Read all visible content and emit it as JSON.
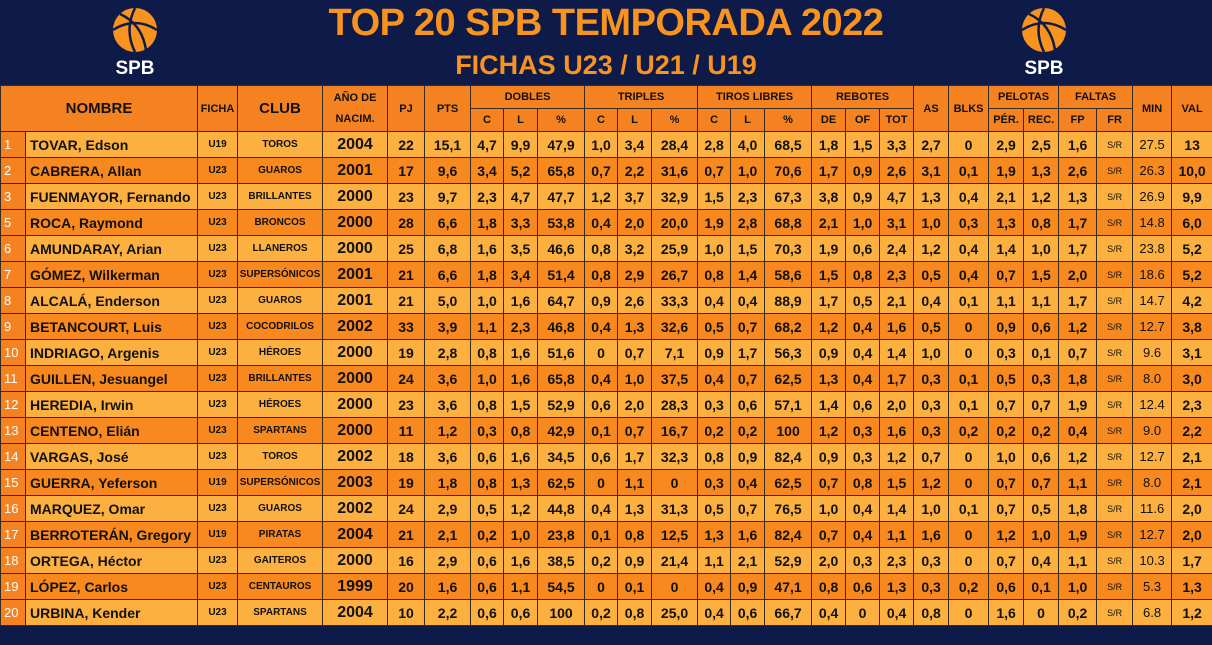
{
  "header": {
    "title": "TOP 20 SPB TEMPORADA 2022",
    "subtitle": "FICHAS U23 / U21 / U19",
    "logo_text": "SPB"
  },
  "table": {
    "groups": [
      {
        "label": "NOMBRE"
      },
      {
        "label": "FICHA"
      },
      {
        "label": "CLUB"
      },
      {
        "label": "AÑO DE NACIM."
      },
      {
        "label": "PJ"
      },
      {
        "label": "PTS"
      },
      {
        "label": "DOBLES",
        "sub": [
          "C",
          "L",
          "%"
        ]
      },
      {
        "label": "TRIPLES",
        "sub": [
          "C",
          "L",
          "%"
        ]
      },
      {
        "label": "TIROS LIBRES",
        "sub": [
          "C",
          "L",
          "%"
        ]
      },
      {
        "label": "REBOTES",
        "sub": [
          "DE",
          "OF",
          "TOT"
        ]
      },
      {
        "label": "AS"
      },
      {
        "label": "BLKS"
      },
      {
        "label": "PELOTAS",
        "sub": [
          "PÉR.",
          "REC."
        ]
      },
      {
        "label": "FALTAS",
        "sub": [
          "FP",
          "FR"
        ]
      },
      {
        "label": "MIN"
      },
      {
        "label": "VAL"
      }
    ],
    "rows": [
      [
        "1",
        "TOVAR, Edson",
        "U19",
        "TOROS",
        "2004",
        "22",
        "15,1",
        "4,7",
        "9,9",
        "47,9",
        "1,0",
        "3,4",
        "28,4",
        "2,8",
        "4,0",
        "68,5",
        "1,8",
        "1,5",
        "3,3",
        "2,7",
        "0",
        "2,9",
        "2,5",
        "1,6",
        "S/R",
        "27.5",
        "13"
      ],
      [
        "2",
        "CABRERA, Allan",
        "U23",
        "GUAROS",
        "2001",
        "17",
        "9,6",
        "3,4",
        "5,2",
        "65,8",
        "0,7",
        "2,2",
        "31,6",
        "0,7",
        "1,0",
        "70,6",
        "1,7",
        "0,9",
        "2,6",
        "3,1",
        "0,1",
        "1,9",
        "1,3",
        "2,6",
        "S/R",
        "26.3",
        "10,0"
      ],
      [
        "3",
        "FUENMAYOR, Fernando",
        "U23",
        "BRILLANTES",
        "2000",
        "23",
        "9,7",
        "2,3",
        "4,7",
        "47,7",
        "1,2",
        "3,7",
        "32,9",
        "1,5",
        "2,3",
        "67,3",
        "3,8",
        "0,9",
        "4,7",
        "1,3",
        "0,4",
        "2,1",
        "1,2",
        "1,3",
        "S/R",
        "26.9",
        "9,9"
      ],
      [
        "5",
        "ROCA, Raymond",
        "U23",
        "BRONCOS",
        "2000",
        "28",
        "6,6",
        "1,8",
        "3,3",
        "53,8",
        "0,4",
        "2,0",
        "20,0",
        "1,9",
        "2,8",
        "68,8",
        "2,1",
        "1,0",
        "3,1",
        "1,0",
        "0,3",
        "1,3",
        "0,8",
        "1,7",
        "S/R",
        "14.8",
        "6,0"
      ],
      [
        "6",
        "AMUNDARAY, Arian",
        "U23",
        "LLANEROS",
        "2000",
        "25",
        "6,8",
        "1,6",
        "3,5",
        "46,6",
        "0,8",
        "3,2",
        "25,9",
        "1,0",
        "1,5",
        "70,3",
        "1,9",
        "0,6",
        "2,4",
        "1,2",
        "0,4",
        "1,4",
        "1,0",
        "1,7",
        "S/R",
        "23.8",
        "5,2"
      ],
      [
        "7",
        "GÓMEZ, Wilkerman",
        "U23",
        "SUPERSÓNICOS",
        "2001",
        "21",
        "6,6",
        "1,8",
        "3,4",
        "51,4",
        "0,8",
        "2,9",
        "26,7",
        "0,8",
        "1,4",
        "58,6",
        "1,5",
        "0,8",
        "2,3",
        "0,5",
        "0,4",
        "0,7",
        "1,5",
        "2,0",
        "S/R",
        "18.6",
        "5,2"
      ],
      [
        "8",
        "ALCALÁ, Enderson",
        "U23",
        "GUAROS",
        "2001",
        "21",
        "5,0",
        "1,0",
        "1,6",
        "64,7",
        "0,9",
        "2,6",
        "33,3",
        "0,4",
        "0,4",
        "88,9",
        "1,7",
        "0,5",
        "2,1",
        "0,4",
        "0,1",
        "1,1",
        "1,1",
        "1,7",
        "S/R",
        "14.7",
        "4,2"
      ],
      [
        "9",
        "BETANCOURT, Luis",
        "U23",
        "COCODRILOS",
        "2002",
        "33",
        "3,9",
        "1,1",
        "2,3",
        "46,8",
        "0,4",
        "1,3",
        "32,6",
        "0,5",
        "0,7",
        "68,2",
        "1,2",
        "0,4",
        "1,6",
        "0,5",
        "0",
        "0,9",
        "0,6",
        "1,2",
        "S/R",
        "12.7",
        "3,8"
      ],
      [
        "10",
        "INDRIAGO, Argenis",
        "U23",
        "HÉROES",
        "2000",
        "19",
        "2,8",
        "0,8",
        "1,6",
        "51,6",
        "0",
        "0,7",
        "7,1",
        "0,9",
        "1,7",
        "56,3",
        "0,9",
        "0,4",
        "1,4",
        "1,0",
        "0",
        "0,3",
        "0,1",
        "0,7",
        "S/R",
        "9.6",
        "3,1"
      ],
      [
        "11",
        "GUILLEN, Jesuangel",
        "U23",
        "BRILLANTES",
        "2000",
        "24",
        "3,6",
        "1,0",
        "1,6",
        "65,8",
        "0,4",
        "1,0",
        "37,5",
        "0,4",
        "0,7",
        "62,5",
        "1,3",
        "0,4",
        "1,7",
        "0,3",
        "0,1",
        "0,5",
        "0,3",
        "1,8",
        "S/R",
        "8.0",
        "3,0"
      ],
      [
        "12",
        "HEREDIA, Irwin",
        "U23",
        "HÉROES",
        "2000",
        "23",
        "3,6",
        "0,8",
        "1,5",
        "52,9",
        "0,6",
        "2,0",
        "28,3",
        "0,3",
        "0,6",
        "57,1",
        "1,4",
        "0,6",
        "2,0",
        "0,3",
        "0,1",
        "0,7",
        "0,7",
        "1,9",
        "S/R",
        "12.4",
        "2,3"
      ],
      [
        "13",
        "CENTENO, Elián",
        "U23",
        "SPARTANS",
        "2000",
        "11",
        "1,2",
        "0,3",
        "0,8",
        "42,9",
        "0,1",
        "0,7",
        "16,7",
        "0,2",
        "0,2",
        "100",
        "1,2",
        "0,3",
        "1,6",
        "0,3",
        "0,2",
        "0,2",
        "0,2",
        "0,4",
        "S/R",
        "9.0",
        "2,2"
      ],
      [
        "14",
        "VARGAS, José",
        "U23",
        "TOROS",
        "2002",
        "18",
        "3,6",
        "0,6",
        "1,6",
        "34,5",
        "0,6",
        "1,7",
        "32,3",
        "0,8",
        "0,9",
        "82,4",
        "0,9",
        "0,3",
        "1,2",
        "0,7",
        "0",
        "1,0",
        "0,6",
        "1,2",
        "S/R",
        "12.7",
        "2,1"
      ],
      [
        "15",
        "GUERRA, Yeferson",
        "U19",
        "SUPERSÓNICOS",
        "2003",
        "19",
        "1,8",
        "0,8",
        "1,3",
        "62,5",
        "0",
        "1,1",
        "0",
        "0,3",
        "0,4",
        "62,5",
        "0,7",
        "0,8",
        "1,5",
        "1,2",
        "0",
        "0,7",
        "0,7",
        "1,1",
        "S/R",
        "8.0",
        "2,1"
      ],
      [
        "16",
        "MARQUEZ, Omar",
        "U23",
        "GUAROS",
        "2002",
        "24",
        "2,9",
        "0,5",
        "1,2",
        "44,8",
        "0,4",
        "1,3",
        "31,3",
        "0,5",
        "0,7",
        "76,5",
        "1,0",
        "0,4",
        "1,4",
        "1,0",
        "0,1",
        "0,7",
        "0,5",
        "1,8",
        "S/R",
        "11.6",
        "2,0"
      ],
      [
        "17",
        "BERROTERÁN, Gregory",
        "U19",
        "PIRATAS",
        "2004",
        "21",
        "2,1",
        "0,2",
        "1,0",
        "23,8",
        "0,1",
        "0,8",
        "12,5",
        "1,3",
        "1,6",
        "82,4",
        "0,7",
        "0,4",
        "1,1",
        "1,6",
        "0",
        "1,2",
        "1,0",
        "1,9",
        "S/R",
        "12.7",
        "2,0"
      ],
      [
        "18",
        "ORTEGA, Héctor",
        "U23",
        "GAITEROS",
        "2000",
        "16",
        "2,9",
        "0,6",
        "1,6",
        "38,5",
        "0,2",
        "0,9",
        "21,4",
        "1,1",
        "2,1",
        "52,9",
        "2,0",
        "0,3",
        "2,3",
        "0,3",
        "0",
        "0,7",
        "0,4",
        "1,1",
        "S/R",
        "10.3",
        "1,7"
      ],
      [
        "19",
        "LÓPEZ, Carlos",
        "U23",
        "CENTAUROS",
        "1999",
        "20",
        "1,6",
        "0,6",
        "1,1",
        "54,5",
        "0",
        "0,1",
        "0",
        "0,4",
        "0,9",
        "47,1",
        "0,8",
        "0,6",
        "1,3",
        "0,3",
        "0,2",
        "0,6",
        "0,1",
        "1,0",
        "S/R",
        "5.3",
        "1,3"
      ],
      [
        "20",
        "URBINA, Kender",
        "U23",
        "SPARTANS",
        "2004",
        "10",
        "2,2",
        "0,6",
        "0,6",
        "100",
        "0,2",
        "0,8",
        "25,0",
        "0,4",
        "0,6",
        "66,7",
        "0,4",
        "0",
        "0,4",
        "0,8",
        "0",
        "1,6",
        "0",
        "0,2",
        "S/R",
        "6.8",
        "1,2"
      ]
    ]
  }
}
